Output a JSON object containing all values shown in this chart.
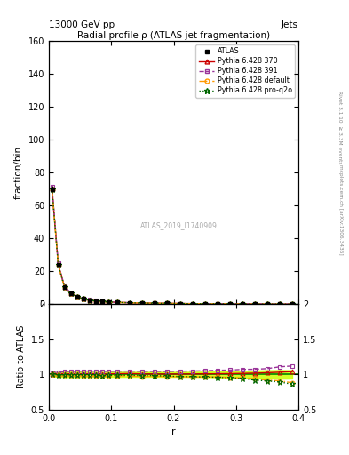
{
  "title": "Radial profile ρ (ATLAS jet fragmentation)",
  "top_left_label": "13000 GeV pp",
  "top_right_label": "Jets",
  "right_label_top": "Rivet 3.1.10, ≥ 3.3M events",
  "right_label_bottom": "mcplots.cern.ch [arXiv:1306.3436]",
  "watermark": "ATLAS_2019_I1740909",
  "xlabel": "r",
  "ylabel_top": "fraction/bin",
  "ylabel_bottom": "Ratio to ATLAS",
  "r_values": [
    0.005,
    0.015,
    0.025,
    0.035,
    0.045,
    0.055,
    0.065,
    0.075,
    0.085,
    0.095,
    0.11,
    0.13,
    0.15,
    0.17,
    0.19,
    0.21,
    0.23,
    0.25,
    0.27,
    0.29,
    0.31,
    0.33,
    0.35,
    0.37,
    0.39
  ],
  "atlas_values": [
    70.0,
    24.0,
    10.5,
    6.5,
    4.5,
    3.2,
    2.5,
    2.0,
    1.7,
    1.4,
    1.1,
    0.85,
    0.7,
    0.58,
    0.48,
    0.4,
    0.33,
    0.27,
    0.22,
    0.18,
    0.14,
    0.11,
    0.085,
    0.065,
    0.05
  ],
  "atlas_errors": [
    2.0,
    0.8,
    0.4,
    0.25,
    0.18,
    0.12,
    0.09,
    0.07,
    0.06,
    0.05,
    0.04,
    0.03,
    0.025,
    0.02,
    0.017,
    0.014,
    0.012,
    0.01,
    0.009,
    0.008,
    0.007,
    0.006,
    0.005,
    0.004,
    0.003
  ],
  "pythia_370_values": [
    70.5,
    24.2,
    10.6,
    6.55,
    4.52,
    3.22,
    2.52,
    2.01,
    1.71,
    1.41,
    1.11,
    0.86,
    0.705,
    0.583,
    0.482,
    0.402,
    0.332,
    0.272,
    0.222,
    0.182,
    0.142,
    0.112,
    0.087,
    0.067,
    0.052
  ],
  "pythia_391_values": [
    71.5,
    24.8,
    10.9,
    6.8,
    4.7,
    3.35,
    2.62,
    2.09,
    1.77,
    1.46,
    1.15,
    0.89,
    0.73,
    0.605,
    0.5,
    0.418,
    0.346,
    0.284,
    0.233,
    0.191,
    0.15,
    0.118,
    0.092,
    0.072,
    0.056
  ],
  "pythia_default_values": [
    70.0,
    23.8,
    10.4,
    6.45,
    4.45,
    3.15,
    2.46,
    1.96,
    1.66,
    1.37,
    1.08,
    0.83,
    0.68,
    0.565,
    0.465,
    0.387,
    0.318,
    0.26,
    0.212,
    0.172,
    0.133,
    0.103,
    0.078,
    0.059,
    0.044
  ],
  "pythia_proq2o_values": [
    70.0,
    23.9,
    10.45,
    6.48,
    4.47,
    3.17,
    2.47,
    1.97,
    1.67,
    1.38,
    1.09,
    0.84,
    0.688,
    0.57,
    0.468,
    0.388,
    0.319,
    0.26,
    0.211,
    0.171,
    0.132,
    0.101,
    0.077,
    0.058,
    0.043
  ],
  "ratio_370": [
    1.007,
    1.008,
    1.009,
    1.008,
    1.005,
    1.006,
    1.008,
    1.005,
    1.006,
    1.007,
    1.009,
    1.012,
    1.007,
    1.005,
    1.004,
    1.005,
    1.006,
    1.007,
    1.009,
    1.011,
    1.014,
    1.018,
    1.024,
    1.031,
    1.04
  ],
  "ratio_391": [
    1.021,
    1.033,
    1.038,
    1.046,
    1.044,
    1.047,
    1.048,
    1.045,
    1.041,
    1.043,
    1.045,
    1.047,
    1.043,
    1.043,
    1.042,
    1.045,
    1.048,
    1.052,
    1.059,
    1.061,
    1.071,
    1.073,
    1.082,
    1.108,
    1.12
  ],
  "ratio_default": [
    1.0,
    0.992,
    0.99,
    0.992,
    0.989,
    0.984,
    0.984,
    0.98,
    0.976,
    0.979,
    0.982,
    0.976,
    0.971,
    0.974,
    0.969,
    0.968,
    0.964,
    0.963,
    0.964,
    0.956,
    0.95,
    0.936,
    0.918,
    0.908,
    0.88
  ],
  "ratio_proq2o": [
    1.0,
    0.996,
    0.995,
    0.997,
    0.993,
    0.991,
    0.988,
    0.985,
    0.982,
    0.986,
    0.991,
    0.988,
    0.983,
    0.983,
    0.975,
    0.97,
    0.967,
    0.963,
    0.959,
    0.95,
    0.943,
    0.918,
    0.906,
    0.892,
    0.86
  ],
  "atlas_band_color": "#ccff00",
  "color_370": "#cc0000",
  "color_391": "#993399",
  "color_default": "#ff9900",
  "color_proq2o": "#006600",
  "color_atlas": "#000000"
}
